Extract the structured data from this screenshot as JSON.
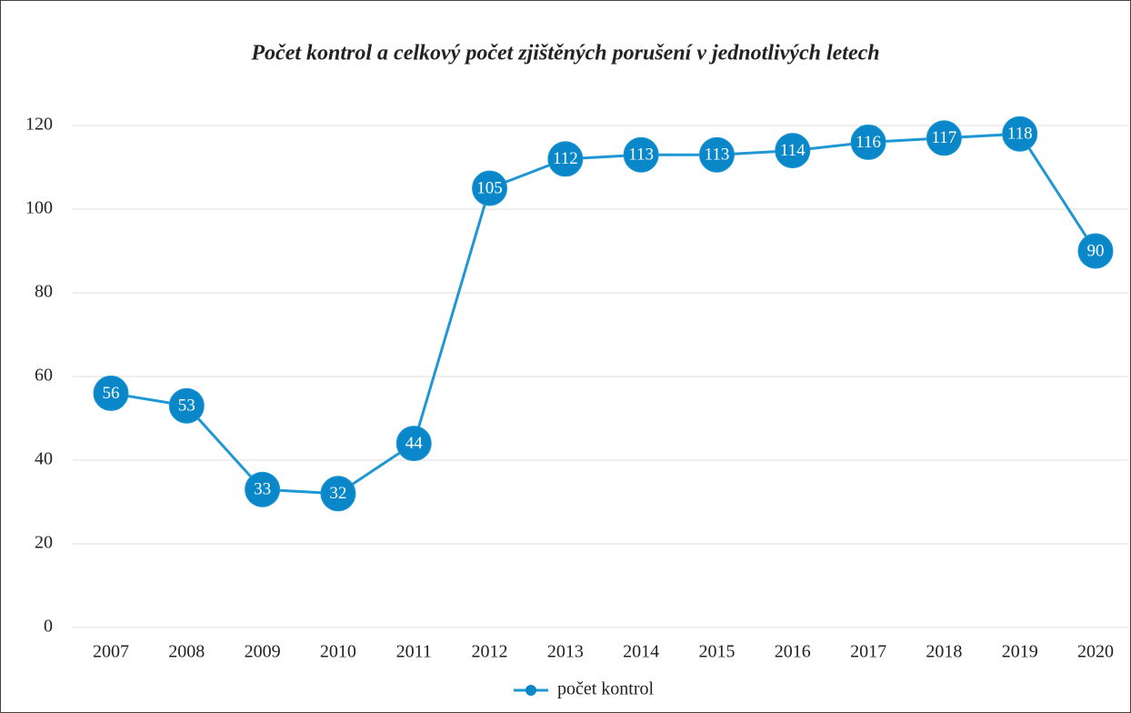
{
  "chart_data": {
    "type": "line",
    "title": "Počet kontrol a celkový počet zjištěných porušení v jednotlivých letech",
    "categories": [
      "2007",
      "2008",
      "2009",
      "2010",
      "2011",
      "2012",
      "2013",
      "2014",
      "2015",
      "2016",
      "2017",
      "2018",
      "2019",
      "2020"
    ],
    "series": [
      {
        "name": "počet kontrol",
        "color": "#1f97d4",
        "marker_color": "#0a87c9",
        "values": [
          56,
          53,
          33,
          32,
          44,
          105,
          112,
          113,
          113,
          114,
          116,
          117,
          118,
          90
        ]
      }
    ],
    "ylim": [
      0,
      120
    ],
    "yticks": [
      0,
      20,
      40,
      60,
      80,
      100,
      120
    ],
    "grid": true,
    "legend": "bottom"
  }
}
